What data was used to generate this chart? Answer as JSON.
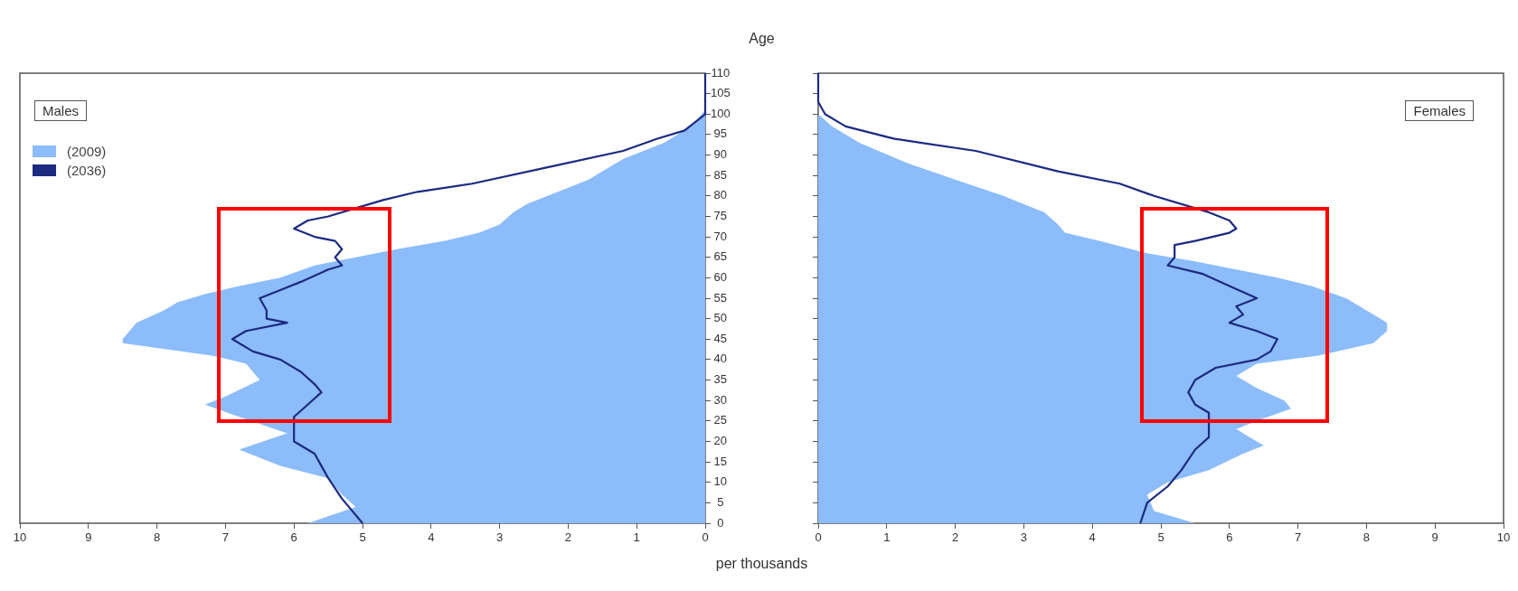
{
  "chart_data": [
    {
      "type": "area",
      "title": "Males",
      "xlabel": "per thousands",
      "ylabel": "Age",
      "orientation": "horizontal",
      "xlim": [
        10,
        0
      ],
      "xticks": [
        0,
        1,
        2,
        3,
        4,
        5,
        6,
        7,
        8,
        9,
        10
      ],
      "ylim": [
        0,
        110
      ],
      "yticks": [
        0,
        5,
        10,
        15,
        20,
        25,
        30,
        35,
        40,
        45,
        50,
        55,
        60,
        65,
        70,
        75,
        80,
        85,
        90,
        95,
        100,
        105,
        110
      ],
      "grid": false,
      "legend": "top left",
      "marker": "none",
      "series": [
        {
          "name": "(2009)",
          "type": "area",
          "color": "#8cbcf9",
          "x": [
            0,
            4,
            7,
            11,
            14,
            18,
            22,
            26,
            29,
            31,
            35,
            39,
            41,
            44,
            45,
            49,
            52,
            54,
            56,
            58,
            60,
            63,
            65,
            67,
            69,
            71,
            73,
            76,
            78,
            80,
            84,
            89,
            93,
            97,
            101,
            110
          ],
          "values": [
            5.8,
            5.1,
            5.3,
            5.5,
            6.2,
            6.8,
            6.1,
            6.8,
            7.3,
            7.0,
            6.5,
            6.7,
            7.2,
            8.5,
            8.5,
            8.3,
            7.9,
            7.7,
            7.3,
            6.8,
            6.2,
            5.7,
            5.1,
            4.5,
            3.8,
            3.3,
            3.0,
            2.8,
            2.6,
            2.3,
            1.7,
            1.2,
            0.6,
            0.2,
            0,
            0
          ]
        },
        {
          "name": "(2036)",
          "type": "line",
          "color": "#1c2a80",
          "x": [
            0,
            6,
            11,
            14,
            17,
            20,
            24,
            26,
            29,
            32,
            34,
            37,
            40,
            42,
            45,
            47,
            49,
            50,
            52,
            55,
            57,
            59,
            62,
            63,
            65,
            67,
            69,
            70,
            72,
            74,
            75,
            77,
            79,
            81,
            83,
            87,
            91,
            94,
            96,
            100,
            110
          ],
          "values": [
            5.0,
            5.3,
            5.5,
            5.6,
            5.7,
            6.0,
            6.0,
            6.0,
            5.8,
            5.6,
            5.7,
            5.9,
            6.2,
            6.6,
            6.9,
            6.7,
            6.1,
            6.4,
            6.4,
            6.5,
            6.2,
            5.9,
            5.5,
            5.3,
            5.4,
            5.3,
            5.4,
            5.7,
            6.0,
            5.8,
            5.5,
            5.1,
            4.7,
            4.2,
            3.4,
            2.3,
            1.2,
            0.7,
            0.3,
            0,
            0
          ]
        }
      ]
    },
    {
      "type": "area",
      "title": "Females",
      "orientation": "horizontal",
      "xlim": [
        0,
        10
      ],
      "xticks": [
        0,
        1,
        2,
        3,
        4,
        5,
        6,
        7,
        8,
        9,
        10
      ],
      "ylim": [
        0,
        110
      ],
      "yticks": [
        0,
        5,
        10,
        15,
        20,
        25,
        30,
        35,
        40,
        45,
        50,
        55,
        60,
        65,
        70,
        75,
        80,
        85,
        90,
        95,
        100,
        105,
        110
      ],
      "tick_labels": "x",
      "grid": false,
      "marker": "none",
      "series": [
        {
          "type": "area",
          "color": "#8cbcf9",
          "x": [
            0,
            3,
            7,
            10,
            13,
            17,
            19,
            21,
            23,
            25,
            28,
            30,
            33,
            36,
            39,
            41,
            44,
            47,
            49,
            51,
            53,
            55,
            58,
            60,
            62,
            64,
            66,
            69,
            71,
            73,
            76,
            80,
            84,
            88,
            93,
            97,
            100,
            110
          ],
          "values": [
            5.5,
            4.9,
            4.8,
            5.1,
            5.7,
            6.2,
            6.5,
            6.3,
            6.1,
            6.4,
            6.9,
            6.8,
            6.4,
            6.1,
            6.4,
            7.3,
            8.1,
            8.3,
            8.3,
            8.1,
            7.9,
            7.7,
            7.2,
            6.7,
            6.1,
            5.5,
            4.8,
            4.1,
            3.6,
            3.5,
            3.3,
            2.7,
            2.0,
            1.3,
            0.6,
            0.2,
            0,
            0
          ]
        },
        {
          "type": "line",
          "color": "#1c2a80",
          "x": [
            0,
            5,
            9,
            13,
            18,
            21,
            24,
            27,
            29,
            32,
            35,
            38,
            40,
            42,
            45,
            47,
            49,
            51,
            53,
            55,
            58,
            61,
            63,
            65,
            68,
            69,
            71,
            72,
            74,
            76,
            77,
            80,
            83,
            86,
            91,
            94,
            97,
            100,
            103,
            110
          ],
          "values": [
            4.7,
            4.8,
            5.1,
            5.3,
            5.5,
            5.7,
            5.7,
            5.7,
            5.5,
            5.4,
            5.5,
            5.8,
            6.4,
            6.6,
            6.7,
            6.4,
            6.0,
            6.2,
            6.1,
            6.4,
            6.0,
            5.6,
            5.1,
            5.2,
            5.2,
            5.5,
            6.0,
            6.1,
            6.0,
            5.7,
            5.5,
            4.9,
            4.4,
            3.5,
            2.3,
            1.1,
            0.4,
            0.1,
            0,
            0
          ]
        }
      ]
    }
  ]
}
